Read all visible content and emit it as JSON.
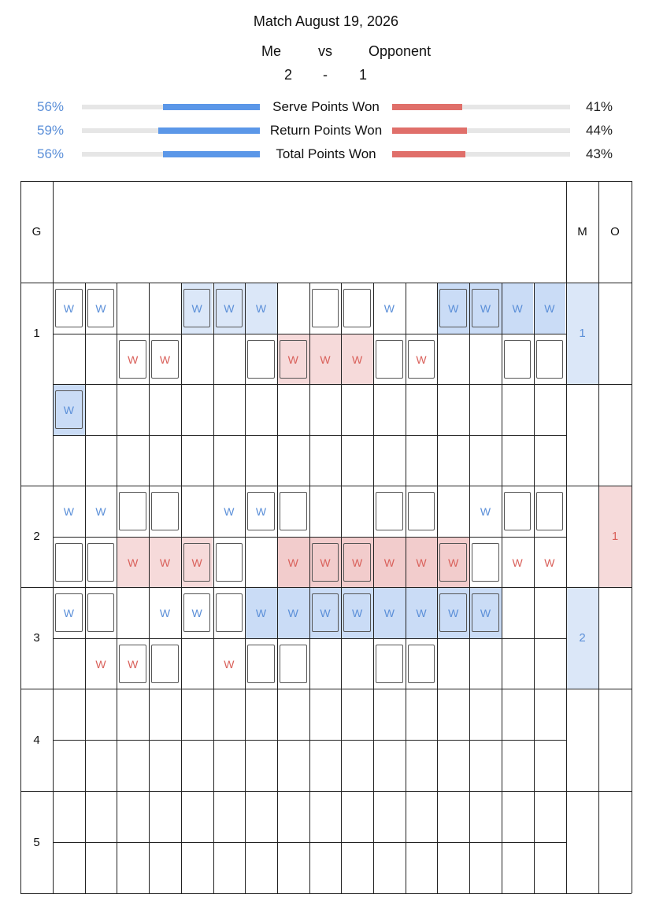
{
  "match": {
    "title": "Match August 19, 2026",
    "player_me": "Me",
    "vs": "vs",
    "player_opponent": "Opponent",
    "score_me": "2",
    "score_dash": "-",
    "score_opponent": "1"
  },
  "stats": [
    {
      "label": "Serve Points Won",
      "me_pct": "56%",
      "opp_pct": "41%",
      "me_value": 0.56,
      "opp_value": 0.41
    },
    {
      "label": "Return Points Won",
      "me_pct": "59%",
      "opp_pct": "44%",
      "me_value": 0.59,
      "opp_value": 0.44
    },
    {
      "label": "Total Points Won",
      "me_pct": "56%",
      "opp_pct": "43%",
      "me_value": 0.56,
      "opp_value": 0.43
    }
  ],
  "grid": {
    "headers": {
      "game": "G",
      "me": "M",
      "opponent": "O"
    },
    "games": [
      {
        "label": "1",
        "me_games": "1",
        "opp_games": ""
      },
      {
        "label": "",
        "me_games": "",
        "opp_games": ""
      },
      {
        "label": "2",
        "me_games": "",
        "opp_games": "1"
      },
      {
        "label": "3",
        "me_games": "2",
        "opp_games": ""
      },
      {
        "label": "4",
        "me_games": "",
        "opp_games": ""
      },
      {
        "label": "5",
        "me_games": "",
        "opp_games": ""
      }
    ],
    "win_mark": "W",
    "rows": [
      {
        "me": "WW..WWW.BB.W.WWWW",
        "opp": "..WW..BWWWBW..BB",
        "me_shade": "....BBB......BBBB",
        "opp_shade": "......RRR.......",
        "me_boxed": "11..11.0110.11..",
        "opp_boxed": "..11..1111111.11"
      }
    ],
    "colors": {
      "blue": "#5b8fd8",
      "red": "#d9605a",
      "blue_bg": "#dbe7f8",
      "blue_bg_dark": "#cadcf6",
      "red_bg": "#f6dada",
      "red_bg_dark": "#f2cccc",
      "bar_track": "#e6e6e6"
    }
  }
}
